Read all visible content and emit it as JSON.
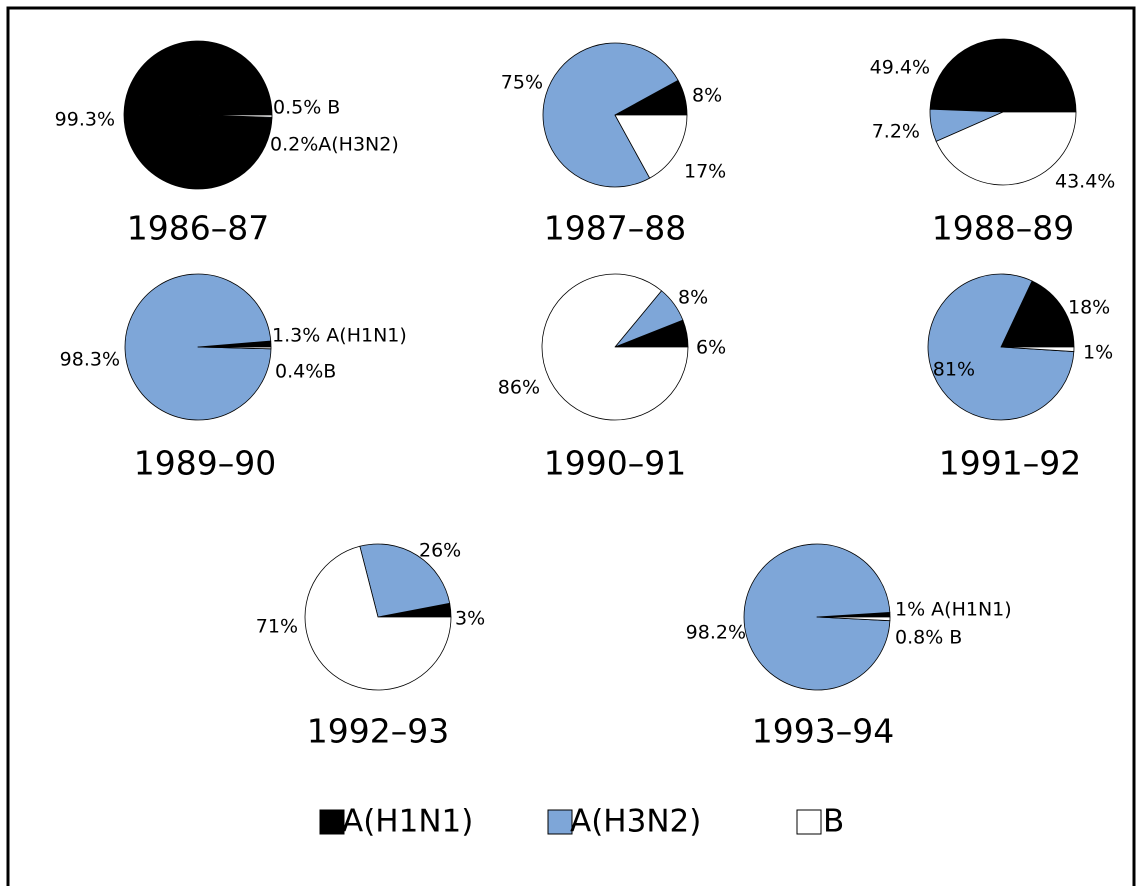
{
  "chart_data": [
    {
      "type": "pie",
      "title": "1986–87",
      "values": [
        99.3,
        0.2,
        0.5
      ],
      "value_labels": [
        "99.3%",
        "0.2%A(H3N2)",
        "0.5% B"
      ]
    },
    {
      "type": "pie",
      "title": "1987–88",
      "values": [
        8,
        75,
        17
      ],
      "value_labels": [
        "8%",
        "75%",
        "17%"
      ]
    },
    {
      "type": "pie",
      "title": "1988–89",
      "values": [
        49.4,
        7.2,
        43.4
      ],
      "value_labels": [
        "49.4%",
        "7.2%",
        "43.4%"
      ]
    },
    {
      "type": "pie",
      "title": "1989–90",
      "values": [
        1.3,
        98.3,
        0.4
      ],
      "value_labels": [
        "1.3% A(H1N1)",
        "98.3%",
        "0.4%B"
      ]
    },
    {
      "type": "pie",
      "title": "1990–91",
      "values": [
        6,
        8,
        86
      ],
      "value_labels": [
        "6%",
        "8%",
        "86%"
      ]
    },
    {
      "type": "pie",
      "title": "1991–92",
      "values": [
        18,
        81,
        1
      ],
      "value_labels": [
        "18%",
        "81%",
        "1%"
      ]
    },
    {
      "type": "pie",
      "title": "1992–93",
      "values": [
        3,
        26,
        71
      ],
      "value_labels": [
        "3%",
        "26%",
        "71%"
      ]
    },
    {
      "type": "pie",
      "title": "1993–94",
      "values": [
        1,
        98.2,
        0.8
      ],
      "value_labels": [
        "1% A(H1N1)",
        "98.2%",
        "0.8%  B"
      ]
    }
  ],
  "legend": {
    "labels": [
      "A(H1N1)",
      "A(H3N2)",
      "B"
    ],
    "colors": [
      "#000000",
      "#7ea6d8",
      "#ffffff"
    ]
  }
}
